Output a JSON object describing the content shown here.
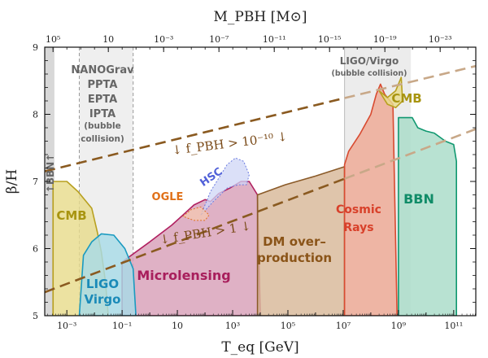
{
  "chart_data": {
    "type": "area",
    "title": "",
    "xlabel": "T_eq [GeV]",
    "ylabel": "β/H",
    "top_xlabel": "M_PBH [M⊙]",
    "xscale": "log10",
    "xlim_log10": [
      -3.8,
      11.8
    ],
    "ylim": [
      5,
      9
    ],
    "x_ticks": [
      {
        "exp": -3,
        "label": "10⁻³"
      },
      {
        "exp": -1,
        "label": "10⁻¹"
      },
      {
        "exp": 1,
        "label": "10"
      },
      {
        "exp": 3,
        "label": "10³"
      },
      {
        "exp": 5,
        "label": "10⁵"
      },
      {
        "exp": 7,
        "label": "10⁷"
      },
      {
        "exp": 9,
        "label": "10⁹"
      },
      {
        "exp": 11,
        "label": "10¹¹"
      }
    ],
    "y_ticks": [
      5,
      6,
      7,
      8,
      9
    ],
    "top_ticks": [
      {
        "at_exp": -3.5,
        "label": "10⁵"
      },
      {
        "at_exp": -0.5,
        "label": "10"
      },
      {
        "at_exp": 2.5,
        "label": "10⁻³"
      },
      {
        "at_exp": 5.5,
        "label": "10⁻⁷"
      },
      {
        "at_exp": 8.5,
        "label": "10⁻¹¹"
      },
      {
        "at_exp": 11.5,
        "label": "10⁻¹⁵"
      },
      {
        "at_exp": 14.5,
        "label": "10⁻¹⁹"
      },
      {
        "at_exp": 17.5,
        "label": "10⁻²³"
      }
    ],
    "bands": [
      {
        "name": "bbn-band",
        "label": "↑BBN↑",
        "x_from": -3.8,
        "x_to": -3.45,
        "color": "#d8d8d8"
      },
      {
        "name": "nanograv-band",
        "label": [
          "NANOGrav",
          "PPTA",
          "EPTA",
          "IPTA",
          "(bubble",
          "collision)"
        ],
        "x_from": -2.55,
        "x_to": -0.6,
        "color": "#efefef"
      },
      {
        "name": "ligo-virgo-band",
        "label": [
          "LIGO/Virgo",
          "(bubble collision)"
        ],
        "x_from": 7.05,
        "x_to": 9.45,
        "color": "#ececec"
      }
    ],
    "regions": [
      {
        "name": "cmb-left-region",
        "label": "CMB",
        "color": "#e8dc8c",
        "stroke": "#b8a020",
        "text_color": "#a89410",
        "points": [
          [
            -3.5,
            5
          ],
          [
            -3.5,
            7.0
          ],
          [
            -3.0,
            7.0
          ],
          [
            -2.6,
            6.85
          ],
          [
            -2.1,
            6.6
          ],
          [
            -1.9,
            6.25
          ],
          [
            -1.75,
            5.95
          ],
          [
            -1.6,
            5.5
          ],
          [
            -1.5,
            5
          ]
        ]
      },
      {
        "name": "ligo-virgo-region",
        "label": [
          "LIGO",
          "Virgo"
        ],
        "color": "#a8dce8",
        "stroke": "#1a9ac0",
        "text_color": "#1a8ab8",
        "points": [
          [
            -2.55,
            5
          ],
          [
            -2.4,
            5.9
          ],
          [
            -2.1,
            6.1
          ],
          [
            -1.75,
            6.22
          ],
          [
            -1.3,
            6.2
          ],
          [
            -0.9,
            6.0
          ],
          [
            -0.6,
            5.7
          ],
          [
            -0.5,
            5
          ]
        ]
      },
      {
        "name": "microlensing-region",
        "label": "Microlensing",
        "color": "#d8a0b8",
        "stroke": "#b02060",
        "text_color": "#a81e5c",
        "points": [
          [
            -1.0,
            5
          ],
          [
            -1.0,
            5.8
          ],
          [
            0.0,
            6.1
          ],
          [
            0.8,
            6.35
          ],
          [
            1.2,
            6.5
          ],
          [
            1.6,
            6.65
          ],
          [
            2.0,
            6.73
          ],
          [
            2.2,
            6.7
          ],
          [
            2.5,
            6.82
          ],
          [
            2.9,
            6.9
          ],
          [
            3.3,
            7.0
          ],
          [
            3.6,
            7.0
          ],
          [
            3.9,
            6.8
          ],
          [
            4.0,
            5
          ]
        ]
      },
      {
        "name": "dm-overproduction-region",
        "label": [
          "DM over–",
          "production"
        ],
        "color": "#d8b898",
        "stroke": "#8a5a28",
        "text_color": "#8a5418",
        "points": [
          [
            3.9,
            5
          ],
          [
            3.9,
            6.8
          ],
          [
            4.9,
            6.95
          ],
          [
            6.0,
            7.08
          ],
          [
            7.05,
            7.22
          ],
          [
            7.05,
            5
          ]
        ]
      },
      {
        "name": "cosmic-rays-region",
        "label": [
          "Cosmic",
          "Rays"
        ],
        "color": "#eea894",
        "stroke": "#d84a30",
        "text_color": "#d8402a",
        "points": [
          [
            7.05,
            5
          ],
          [
            7.05,
            7.25
          ],
          [
            7.2,
            7.45
          ],
          [
            7.6,
            7.7
          ],
          [
            8.0,
            8.0
          ],
          [
            8.2,
            8.3
          ],
          [
            8.35,
            8.45
          ],
          [
            8.5,
            8.3
          ],
          [
            8.8,
            8.15
          ],
          [
            8.95,
            5
          ]
        ]
      },
      {
        "name": "cmb-right-region",
        "label": "CMB",
        "color": "#e8dc8c",
        "stroke": "#b8a020",
        "text_color": "#a89410",
        "points": [
          [
            8.3,
            8.35
          ],
          [
            8.6,
            8.25
          ],
          [
            8.9,
            8.35
          ],
          [
            9.1,
            8.55
          ],
          [
            9.15,
            8.2
          ],
          [
            8.9,
            8.1
          ],
          [
            8.6,
            8.15
          ]
        ]
      },
      {
        "name": "bbn-region",
        "label": "BBN",
        "color": "#a8dcc8",
        "stroke": "#109870",
        "text_color": "#108c68",
        "points": [
          [
            9.0,
            5
          ],
          [
            9.0,
            7.95
          ],
          [
            9.3,
            7.95
          ],
          [
            9.5,
            7.95
          ],
          [
            9.7,
            7.8
          ],
          [
            10.0,
            7.75
          ],
          [
            10.3,
            7.72
          ],
          [
            10.7,
            7.6
          ],
          [
            11.0,
            7.55
          ],
          [
            11.1,
            7.3
          ],
          [
            11.1,
            5
          ]
        ]
      },
      {
        "name": "hsc-region",
        "label": "HSC",
        "color": "#cfd6f5",
        "stroke": "#6a7ae0",
        "text_color": "#5060d8",
        "points": [
          [
            1.85,
            6.5
          ],
          [
            2.2,
            6.85
          ],
          [
            2.5,
            7.05
          ],
          [
            2.8,
            7.25
          ],
          [
            3.1,
            7.35
          ],
          [
            3.4,
            7.3
          ],
          [
            3.6,
            7.1
          ],
          [
            3.5,
            6.95
          ],
          [
            3.2,
            6.95
          ],
          [
            2.8,
            6.9
          ],
          [
            2.3,
            6.7
          ]
        ]
      },
      {
        "name": "ogle-region",
        "label": "OGLE",
        "color": "#f4c8b0",
        "stroke": "#e07020",
        "text_color": "#e07018",
        "points": [
          [
            1.2,
            6.48
          ],
          [
            1.5,
            6.58
          ],
          [
            1.85,
            6.62
          ],
          [
            2.15,
            6.5
          ],
          [
            2.0,
            6.42
          ],
          [
            1.6,
            6.42
          ]
        ]
      }
    ],
    "lines": [
      {
        "name": "fpbh-1e-10-line",
        "label": "↓ f_PBH > 10⁻¹⁰ ↓",
        "color": "#8a5a20",
        "faded_color": "#c8a888",
        "from": [
          -3.8,
          7.15
        ],
        "to": [
          11.8,
          8.72
        ],
        "solid_until": 7.05
      },
      {
        "name": "fpbh-1-line",
        "label": "↓ f_PBH > 1 ↓",
        "color": "#8a5a20",
        "faded_color": "#c8a888",
        "from": [
          -3.8,
          5.35
        ],
        "to": [
          11.8,
          7.78
        ],
        "solid_until": 7.05
      }
    ]
  }
}
